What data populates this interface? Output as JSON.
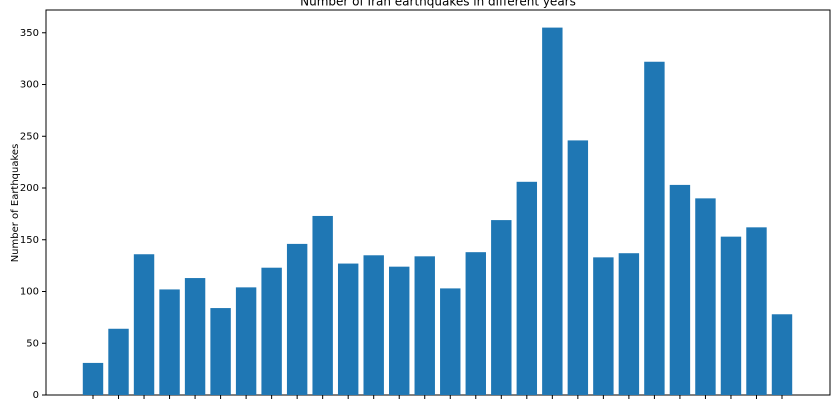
{
  "chart_data": {
    "type": "bar",
    "title": "Number of Iran earthquakes in different years",
    "ylabel": "Number of Earthquakes",
    "categories": [
      null,
      null,
      null,
      null,
      null,
      null,
      null,
      null,
      null,
      null,
      null,
      null,
      null,
      null,
      null,
      null,
      null,
      null,
      null,
      null,
      null,
      null,
      null,
      null,
      null,
      null,
      null,
      null
    ],
    "values": [
      31,
      64,
      136,
      102,
      113,
      84,
      104,
      123,
      146,
      173,
      127,
      135,
      124,
      134,
      103,
      138,
      169,
      206,
      355,
      246,
      133,
      137,
      322,
      203,
      190,
      153,
      162,
      78
    ],
    "color": "#1f77b4",
    "ylim": [
      0,
      372
    ],
    "yticks": [
      0,
      50,
      100,
      150,
      200,
      250,
      300,
      350
    ],
    "grid": false
  }
}
